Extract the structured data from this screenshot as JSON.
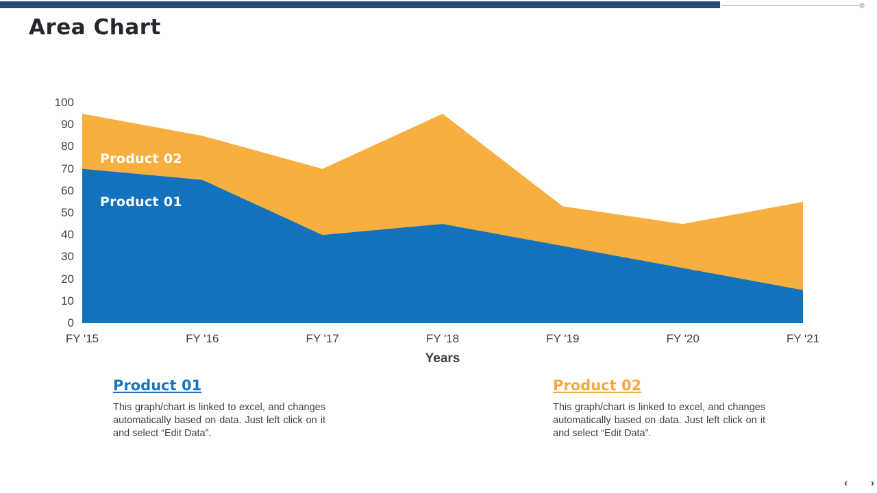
{
  "slide": {
    "title": "Area Chart",
    "nav": {
      "prev": "‹",
      "next": "›"
    }
  },
  "colors": {
    "top_bar_navy": "#27467a",
    "product01_blue": "#1272be",
    "product02_orange": "#f7b040",
    "axis_text": "#404040",
    "body_text": "#3f3f3f",
    "heading_blue": "#1b74bb",
    "heading_orange": "#f2a944"
  },
  "chart_data": {
    "type": "area",
    "mode": "overlapping (orange series drawn behind blue series)",
    "categories": [
      "FY '15",
      "FY '16",
      "FY '17",
      "FY '18",
      "FY '19",
      "FY '20",
      "FY '21"
    ],
    "series": [
      {
        "name": "Product 01",
        "color": "#1272be",
        "values": [
          70,
          65,
          40,
          45,
          35,
          25,
          15
        ]
      },
      {
        "name": "Product 02",
        "color": "#f7b040",
        "values": [
          95,
          85,
          70,
          95,
          53,
          45,
          55
        ]
      }
    ],
    "title": "Area Chart",
    "xlabel": "Years",
    "ylabel": "",
    "ylim": [
      0,
      100
    ],
    "yticks": [
      0,
      10,
      20,
      30,
      40,
      50,
      60,
      70,
      80,
      90,
      100
    ],
    "grid": "off",
    "legend_position": "labels inside areas",
    "area_labels": [
      {
        "text": "Product 02"
      },
      {
        "text": "Product 01"
      }
    ]
  },
  "legend_blocks": [
    {
      "title": "Product 01",
      "description": "This graph/chart is linked to excel, and changes automatically based on data. Just left click on it and select “Edit Data”."
    },
    {
      "title": "Product 02",
      "description": "This graph/chart is linked to excel, and changes automatically based on data. Just left click on it and select “Edit Data”."
    }
  ]
}
